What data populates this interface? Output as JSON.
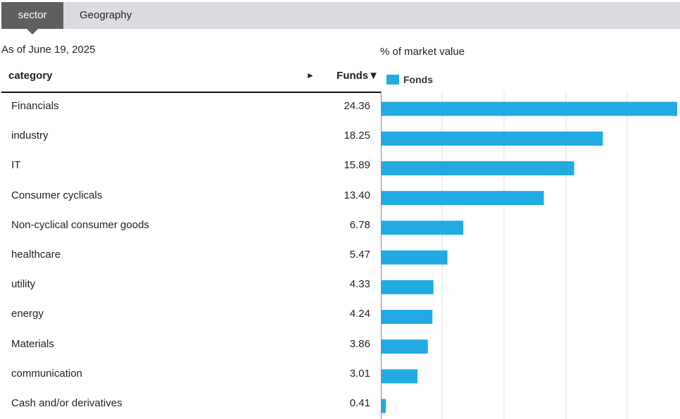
{
  "tabs": {
    "active": "sector",
    "other": "Geography"
  },
  "as_of": "As of June 19, 2025",
  "table": {
    "header_category": "category",
    "header_arrow": "►",
    "header_funds": "Funds▼"
  },
  "rows": [
    {
      "category": "Financials",
      "value": "24.36"
    },
    {
      "category": "industry",
      "value": "18.25"
    },
    {
      "category": "IT",
      "value": "15.89"
    },
    {
      "category": "Consumer cyclicals",
      "value": "13.40"
    },
    {
      "category": "Non-cyclical consumer goods",
      "value": "6.78"
    },
    {
      "category": "healthcare",
      "value": "5.47"
    },
    {
      "category": "utility",
      "value": "4.33"
    },
    {
      "category": "energy",
      "value": "4.24"
    },
    {
      "category": "Materials",
      "value": "3.86"
    },
    {
      "category": "communication",
      "value": "3.01"
    },
    {
      "category": "Cash and/or derivatives",
      "value": "0.41"
    }
  ],
  "chart_data": {
    "type": "bar",
    "orientation": "horizontal",
    "title": "% of market value",
    "categories": [
      "Financials",
      "industry",
      "IT",
      "Consumer cyclicals",
      "Non-cyclical consumer goods",
      "healthcare",
      "utility",
      "energy",
      "Materials",
      "communication",
      "Cash and/or derivatives"
    ],
    "series": [
      {
        "name": "Fonds",
        "values": [
          24.36,
          18.25,
          15.89,
          13.4,
          6.78,
          5.47,
          4.33,
          4.24,
          3.86,
          3.01,
          0.41
        ]
      }
    ],
    "xlim": [
      0,
      24.36
    ],
    "grid": true,
    "legend": "top-left",
    "bar_color": "#22aae2",
    "grid_color": "#e3e3e3"
  }
}
